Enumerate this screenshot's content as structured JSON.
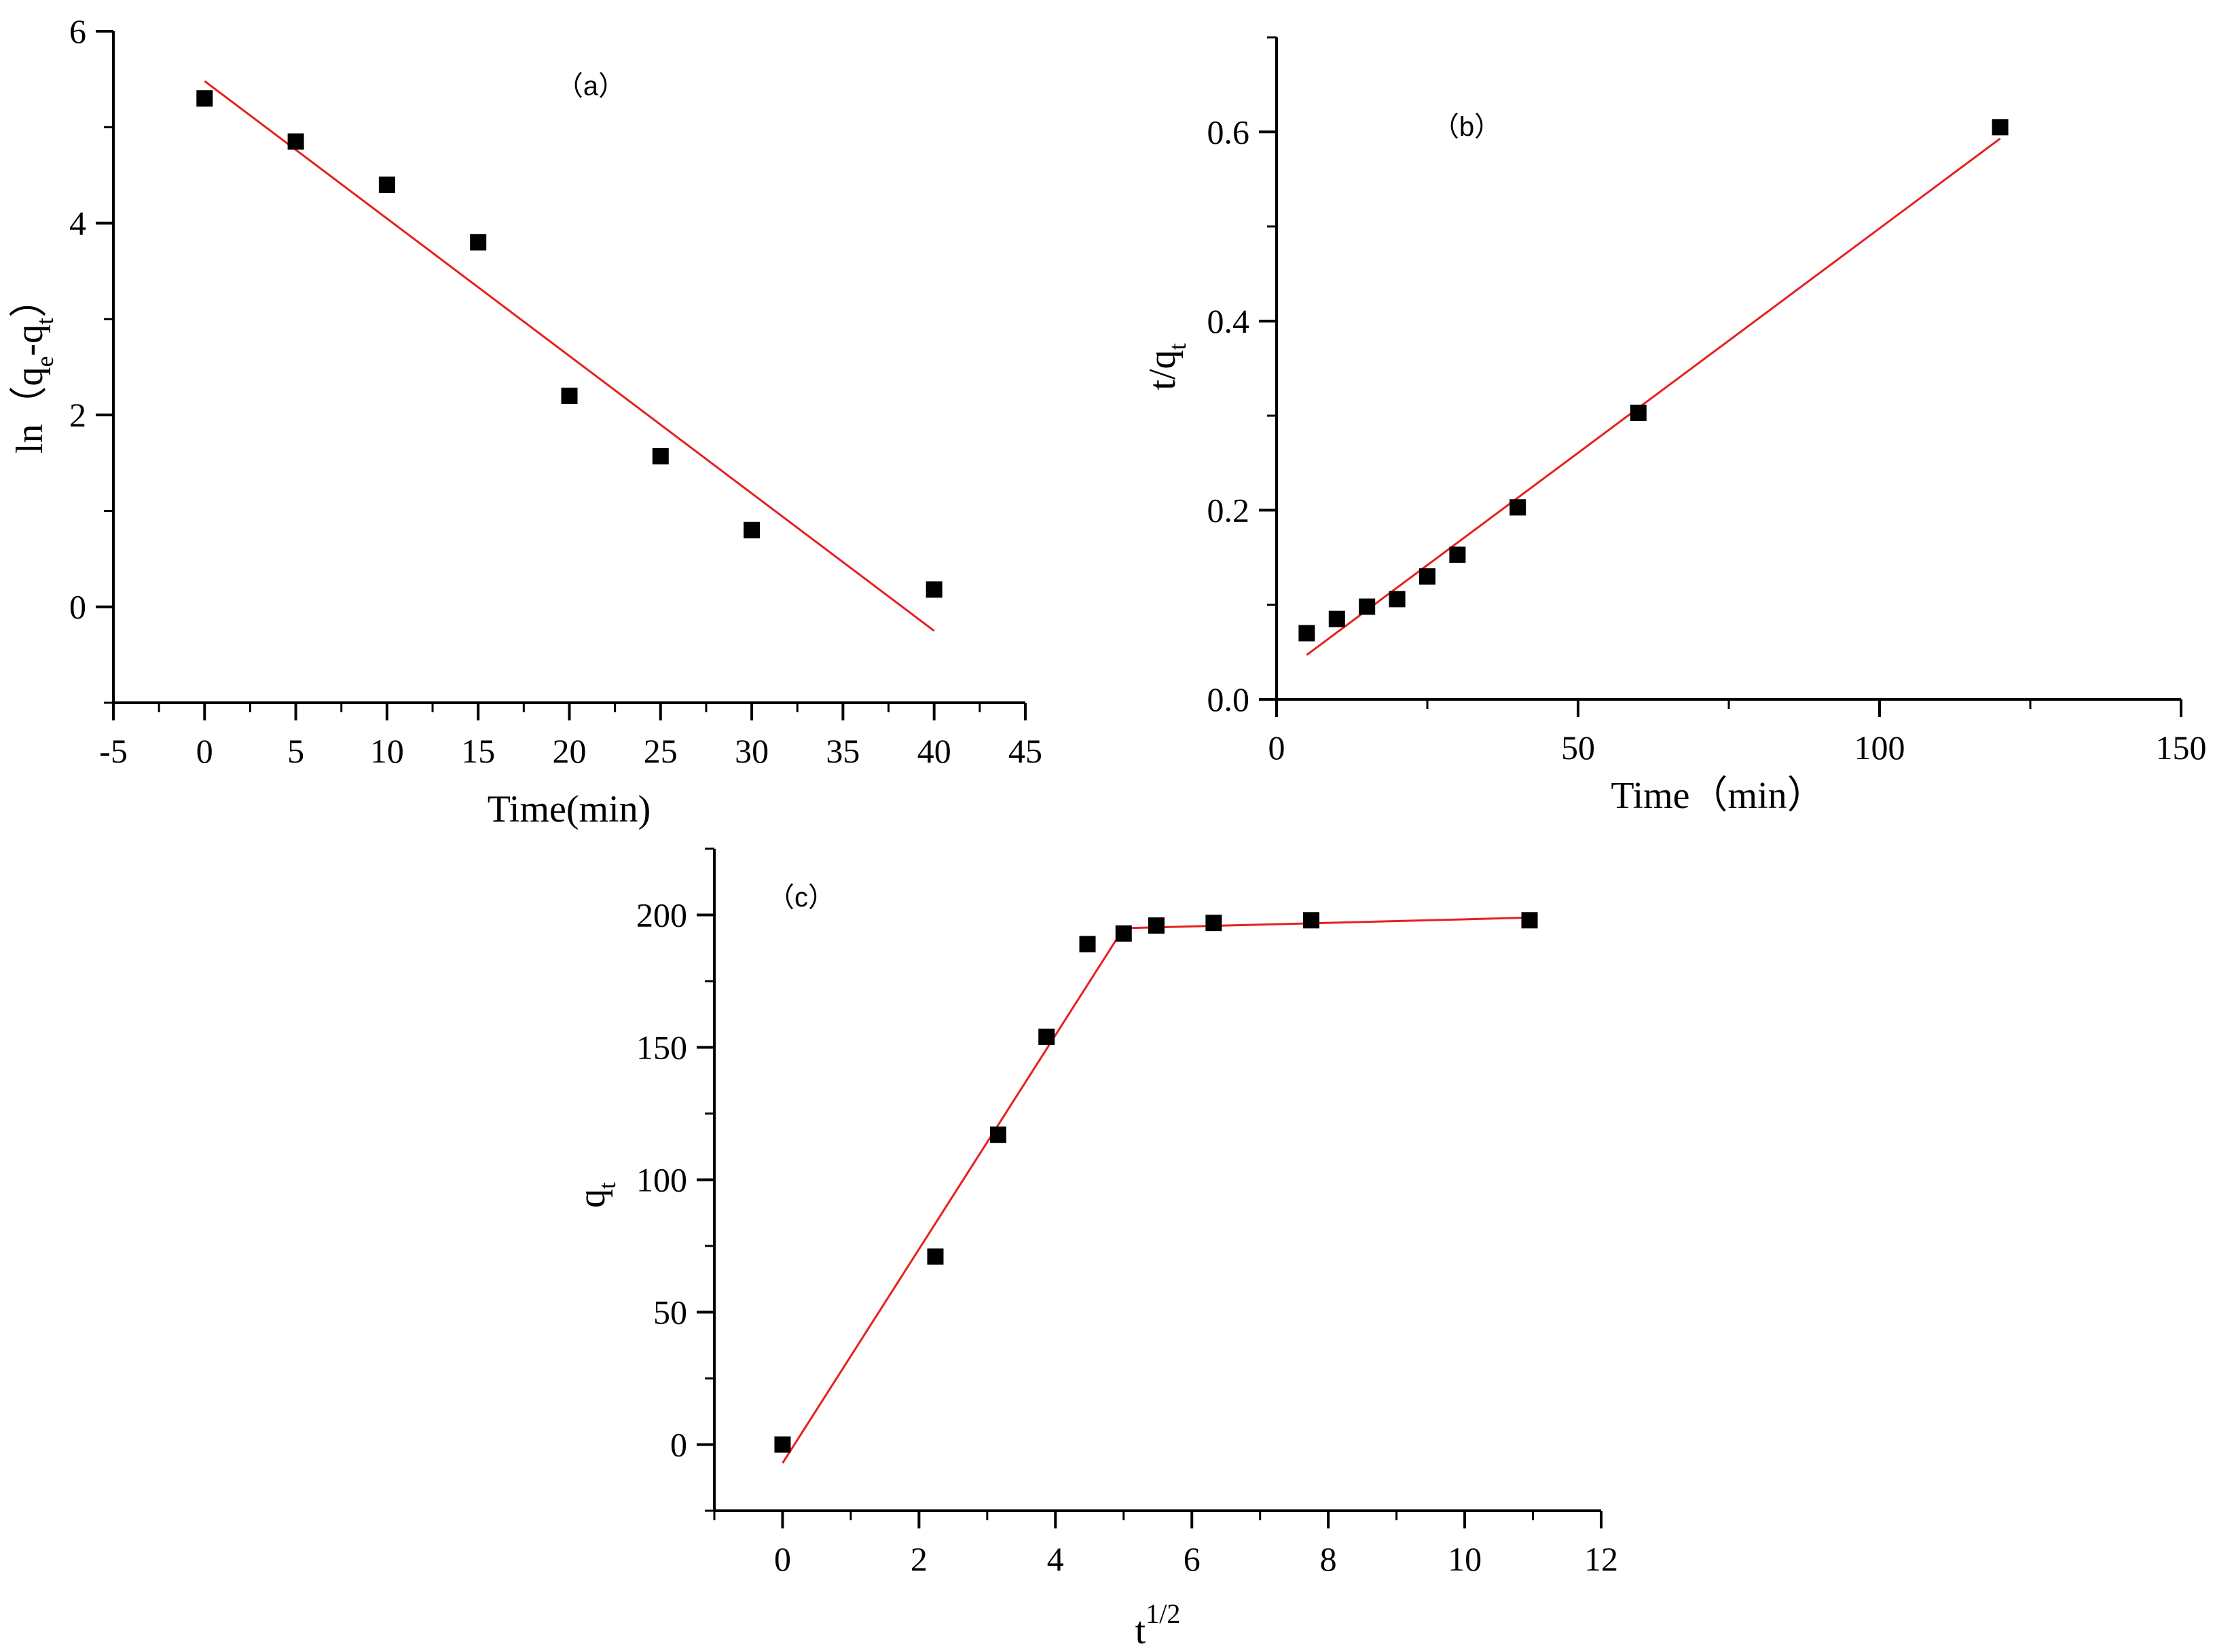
{
  "chart_data": [
    {
      "id": "a",
      "type": "scatter",
      "panel_label": "（a）",
      "title": "",
      "xlabel": "Time(min)",
      "ylabel_parts": [
        {
          "text": "ln（q",
          "sub": false
        },
        {
          "text": "e",
          "sub": true
        },
        {
          "text": "-q",
          "sub": false
        },
        {
          "text": "t",
          "sub": true
        },
        {
          "text": "）",
          "sub": false
        }
      ],
      "xlim": [
        -5,
        45
      ],
      "ylim": [
        -1,
        6
      ],
      "x_ticks": [
        -5,
        0,
        5,
        10,
        15,
        20,
        25,
        30,
        35,
        40,
        45
      ],
      "x_tick_labels": [
        "-5",
        "0",
        "5",
        "10",
        "15",
        "20",
        "25",
        "30",
        "35",
        "40",
        "45"
      ],
      "y_ticks": [
        0,
        2,
        4,
        6
      ],
      "y_tick_labels": [
        "0",
        "2",
        "4",
        "6"
      ],
      "x_minor_step": 2.5,
      "y_minor_step": 1,
      "grid": false,
      "marker_color": "#000000",
      "fit_color": "#e8201e",
      "points": {
        "x": [
          0,
          5,
          10,
          15,
          20,
          25,
          30,
          40
        ],
        "y": [
          5.3,
          4.85,
          4.4,
          3.8,
          2.2,
          1.57,
          0.8,
          0.18
        ]
      },
      "fit_lines": [
        {
          "x": [
            0,
            40
          ],
          "y": [
            5.48,
            -0.25
          ]
        }
      ]
    },
    {
      "id": "b",
      "type": "scatter",
      "panel_label": "（b）",
      "title": "",
      "xlabel": "Time（min）",
      "ylabel_parts": [
        {
          "text": "t/q",
          "sub": false
        },
        {
          "text": "t",
          "sub": true
        }
      ],
      "xlim": [
        0,
        150
      ],
      "ylim": [
        0,
        0.7
      ],
      "x_ticks": [
        0,
        50,
        100,
        150
      ],
      "x_tick_labels": [
        "0",
        "50",
        "100",
        "150"
      ],
      "y_ticks": [
        0,
        0.2,
        0.4,
        0.6
      ],
      "y_tick_labels": [
        "0.0",
        "0.2",
        "0.4",
        "0.6"
      ],
      "x_minor_step": 25,
      "y_minor_step": 0.1,
      "grid": false,
      "marker_color": "#000000",
      "fit_color": "#e8201e",
      "points": {
        "x": [
          5,
          10,
          15,
          20,
          25,
          30,
          40,
          60,
          120
        ],
        "y": [
          0.07,
          0.085,
          0.098,
          0.106,
          0.13,
          0.153,
          0.203,
          0.303,
          0.605
        ]
      },
      "fit_lines": [
        {
          "x": [
            5,
            120
          ],
          "y": [
            0.047,
            0.593
          ]
        }
      ]
    },
    {
      "id": "c",
      "type": "scatter",
      "panel_label": "（c）",
      "title": "",
      "xlabel_parts": [
        {
          "text": "t",
          "sup": false
        },
        {
          "text": "1/2",
          "sup": true
        }
      ],
      "ylabel_parts": [
        {
          "text": "q",
          "sub": false
        },
        {
          "text": "t",
          "sub": true
        }
      ],
      "xlim": [
        -1,
        12
      ],
      "ylim": [
        -25,
        225
      ],
      "x_ticks": [
        0,
        2,
        4,
        6,
        8,
        10,
        12
      ],
      "x_tick_labels": [
        "0",
        "2",
        "4",
        "6",
        "8",
        "10",
        "12"
      ],
      "y_ticks": [
        0,
        50,
        100,
        150,
        200
      ],
      "y_tick_labels": [
        "0",
        "50",
        "100",
        "150",
        "200"
      ],
      "x_minor_step": 1,
      "y_minor_step": 25,
      "grid": false,
      "marker_color": "#000000",
      "fit_color": "#e8201e",
      "points": {
        "x": [
          0,
          2.24,
          3.16,
          3.87,
          4.47,
          5.0,
          5.48,
          6.32,
          7.75,
          10.95
        ],
        "y": [
          0,
          71,
          117,
          154,
          189,
          193,
          196,
          197,
          198,
          198
        ]
      },
      "fit_lines": [
        {
          "x": [
            0,
            5.0
          ],
          "y": [
            -7,
            195
          ]
        },
        {
          "x": [
            5.0,
            10.95
          ],
          "y": [
            195,
            199
          ]
        }
      ]
    }
  ]
}
